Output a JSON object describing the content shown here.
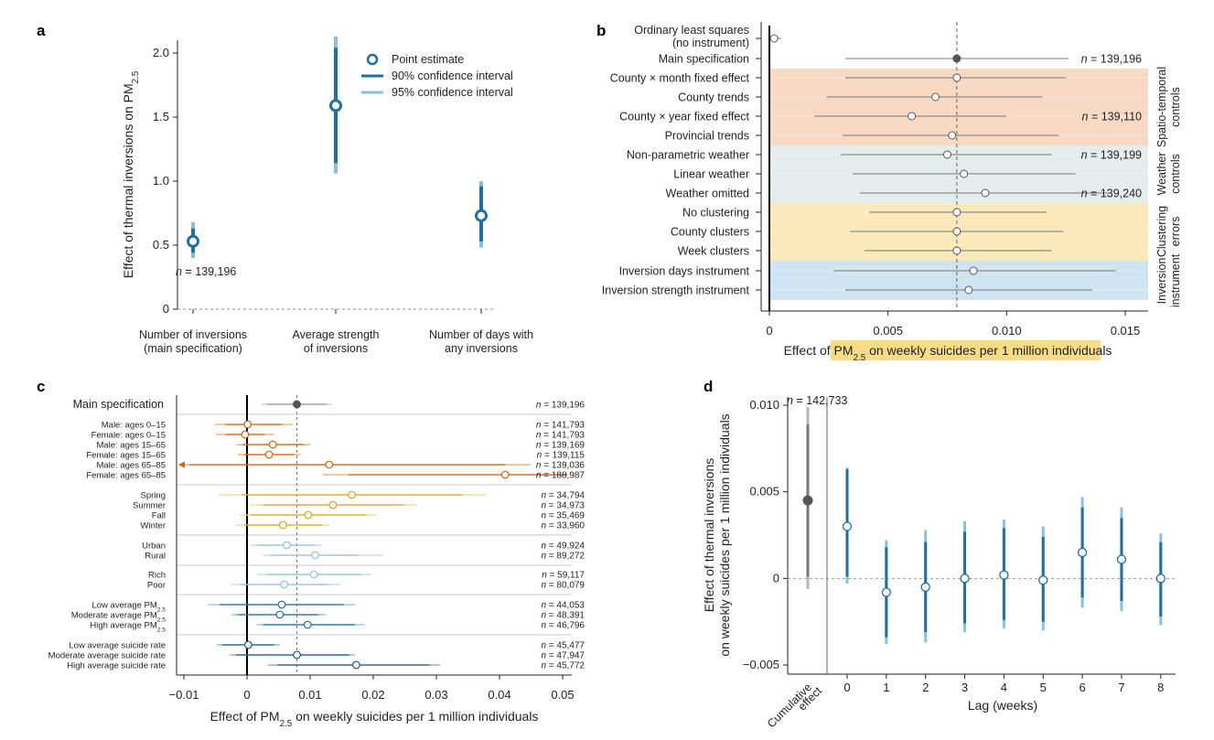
{
  "panel_labels": {
    "a": "a",
    "b": "b",
    "c": "c",
    "d": "d"
  },
  "colors": {
    "blue_dark": "#1d6fa8",
    "blue_light": "#8dbfdd",
    "gray_point": "#555555",
    "orange_dark": "#d95f0e",
    "orange_light": "#f2a65a",
    "yellow_dark": "#e3a21a",
    "yellow_light": "#f5d58a",
    "lightblue_point": "#8ec1dc",
    "navy": "#1d5a80",
    "band_spatio": "#f8d9c3",
    "band_weather": "#e4ecec",
    "band_cluster": "#fbe8bb",
    "band_instrument": "#cfe3f1",
    "xlabel_highlight": "#f6dc86"
  },
  "chart_data": [
    {
      "id": "a",
      "type": "scatter",
      "ylabel_prefix": "Effect of thermal inversions on PM",
      "ylabel_sub": "2.5",
      "yticks": [
        "0",
        "0.5",
        "1.0",
        "1.5",
        "2.0"
      ],
      "ytick_values": [
        0,
        0.5,
        1.0,
        1.5,
        2.0
      ],
      "ylim": [
        0,
        2.1
      ],
      "categories": [
        {
          "line1": "Number of inversions",
          "line2": "(main specification)"
        },
        {
          "line1": "Average strength",
          "line2": "of inversions"
        },
        {
          "line1": "Number of days with",
          "line2": "any inversions"
        }
      ],
      "points": [
        {
          "est": 0.53,
          "ci90": [
            0.44,
            0.63
          ],
          "ci95": [
            0.4,
            0.68
          ]
        },
        {
          "est": 1.59,
          "ci90": [
            1.14,
            2.04
          ],
          "ci95": [
            1.06,
            2.13
          ]
        },
        {
          "est": 0.73,
          "ci90": [
            0.53,
            0.96
          ],
          "ci95": [
            0.48,
            1.0
          ]
        }
      ],
      "legend": [
        "Point estimate",
        "90% confidence interval",
        "95% confidence interval"
      ],
      "annotation": {
        "n_prefix": "n",
        "n_text": " = 139,196"
      }
    },
    {
      "id": "b",
      "type": "scatter",
      "xlabel_prefix": "Effect of PM",
      "xlabel_sub": "2.5",
      "xlabel_suffix": " on weekly suicides per 1 million individuals",
      "xticks": [
        "0",
        "0.005",
        "0.010",
        "0.015"
      ],
      "xtick_values": [
        0,
        0.005,
        0.01,
        0.015
      ],
      "xlim": [
        0,
        0.0162
      ],
      "reference_value": 0.0079,
      "rows": [
        {
          "line1": "Ordinary least squares",
          "line2": "(no instrument)",
          "est": 0.0002,
          "lo": 0.0,
          "hi": 0.0005,
          "filled": false,
          "n": ""
        },
        {
          "label": "Main specification",
          "est": 0.0079,
          "lo": 0.0032,
          "hi": 0.0126,
          "filled": true,
          "n": "139,196"
        },
        {
          "label": "County × month fixed effect",
          "est": 0.0079,
          "lo": 0.0032,
          "hi": 0.0125,
          "filled": false,
          "n": ""
        },
        {
          "label": "County trends",
          "est": 0.007,
          "lo": 0.0024,
          "hi": 0.0115,
          "filled": false,
          "n": ""
        },
        {
          "label": "County × year fixed effect",
          "est": 0.006,
          "lo": 0.0019,
          "hi": 0.01,
          "filled": false,
          "n": "139,110"
        },
        {
          "label": "Provincial trends",
          "est": 0.0077,
          "lo": 0.0031,
          "hi": 0.0122,
          "filled": false,
          "n": ""
        },
        {
          "label": "Non-parametric weather",
          "est": 0.0075,
          "lo": 0.003,
          "hi": 0.0119,
          "filled": false,
          "n": "139,199"
        },
        {
          "label": "Linear weather",
          "est": 0.0082,
          "lo": 0.0035,
          "hi": 0.0129,
          "filled": false,
          "n": ""
        },
        {
          "label": "Weather omitted",
          "est": 0.0091,
          "lo": 0.0038,
          "hi": 0.0144,
          "filled": false,
          "n": "139,240"
        },
        {
          "label": "No clustering",
          "est": 0.0079,
          "lo": 0.0042,
          "hi": 0.0117,
          "filled": false,
          "n": ""
        },
        {
          "label": "County clusters",
          "est": 0.0079,
          "lo": 0.0034,
          "hi": 0.0124,
          "filled": false,
          "n": ""
        },
        {
          "label": "Week clusters",
          "est": 0.0079,
          "lo": 0.004,
          "hi": 0.0119,
          "filled": false,
          "n": ""
        },
        {
          "label": "Inversion days instrument",
          "est": 0.0086,
          "lo": 0.0027,
          "hi": 0.0146,
          "filled": false,
          "n": ""
        },
        {
          "label": "Inversion strength instrument",
          "est": 0.0084,
          "lo": 0.0032,
          "hi": 0.0136,
          "filled": false,
          "n": ""
        }
      ],
      "groups": [
        {
          "line1": "Spatio-temporal",
          "line2": "controls"
        },
        {
          "line1": "Weather",
          "line2": "controls"
        },
        {
          "line1": "Clustering",
          "line2": "errors"
        },
        {
          "line1": "Inversion",
          "line2": "instrument"
        }
      ],
      "n_prefix": "n"
    },
    {
      "id": "c",
      "type": "scatter",
      "xlabel_prefix": "Effect of PM",
      "xlabel_sub": "2.5",
      "xlabel_suffix": " on weekly suicides per 1 million individuals",
      "xticks": [
        "−0.01",
        "0",
        "0.01",
        "0.02",
        "0.03",
        "0.04",
        "0.05"
      ],
      "xtick_values": [
        -0.01,
        0,
        0.01,
        0.02,
        0.03,
        0.04,
        0.05
      ],
      "xlim": [
        -0.0103,
        0.0508
      ],
      "reference_value": 0.0079,
      "main": {
        "label": "Main specification",
        "est": 0.0079,
        "lo90": 0.0032,
        "hi90": 0.0126,
        "lo95": 0.0023,
        "hi95": 0.0135,
        "n": "139,196"
      },
      "subgroups": [
        {
          "label": "Male: ages 0–15",
          "est": 0.0001,
          "lo90": -0.0034,
          "hi90": 0.0055,
          "lo95": -0.0051,
          "hi95": 0.0072,
          "n": "141,793",
          "color": "orange"
        },
        {
          "label": "Female: ages 0–15",
          "est": -0.0003,
          "lo90": -0.0034,
          "hi90": 0.0028,
          "lo95": -0.0049,
          "hi95": 0.0043,
          "n": "141,793",
          "color": "orange"
        },
        {
          "label": "Male: ages 15–65",
          "est": 0.0041,
          "lo90": -0.0007,
          "hi90": 0.009,
          "lo95": -0.0017,
          "hi95": 0.01,
          "n": "139,169",
          "color": "orange"
        },
        {
          "label": "Female: ages 15–65",
          "est": 0.0035,
          "lo90": -0.0005,
          "hi90": 0.0075,
          "lo95": -0.0015,
          "hi95": 0.0085,
          "n": "139,115",
          "color": "orange"
        },
        {
          "label": "Male: ages 65–85",
          "est": 0.013,
          "lo90": -0.0092,
          "hi90": 0.041,
          "lo95": -0.0103,
          "hi95": 0.045,
          "n": "139,036",
          "color": "orange",
          "arrow": true
        },
        {
          "label": "Female: ages 65–85",
          "est": 0.0409,
          "lo90": 0.016,
          "hi90": 0.0508,
          "lo95": 0.012,
          "hi95": 0.0508,
          "n": "188,987",
          "color": "orange"
        },
        {
          "label": "Spring",
          "est": 0.0166,
          "lo90": -0.0008,
          "hi90": 0.0342,
          "lo95": -0.0045,
          "hi95": 0.0379,
          "n": "34,794",
          "color": "yellow"
        },
        {
          "label": "Summer",
          "est": 0.0136,
          "lo90": 0.0025,
          "hi90": 0.0248,
          "lo95": 0.0005,
          "hi95": 0.0268,
          "n": "34,973",
          "color": "yellow"
        },
        {
          "label": "Fall",
          "est": 0.0097,
          "lo90": 0.0006,
          "hi90": 0.0189,
          "lo95": -0.0011,
          "hi95": 0.0206,
          "n": "35,469",
          "color": "yellow"
        },
        {
          "label": "Winter",
          "est": 0.0057,
          "lo90": -0.0005,
          "hi90": 0.0119,
          "lo95": -0.0017,
          "hi95": 0.0131,
          "n": "33,960",
          "color": "yellow"
        },
        {
          "label": "Urban",
          "est": 0.0063,
          "lo90": 0.0016,
          "hi90": 0.0109,
          "lo95": 0.0007,
          "hi95": 0.0118,
          "n": "49,924",
          "color": "lightblue"
        },
        {
          "label": "Rural",
          "est": 0.0108,
          "lo90": 0.0039,
          "hi90": 0.0177,
          "lo95": 0.0025,
          "hi95": 0.0215,
          "n": "89,272",
          "color": "lightblue"
        },
        {
          "label": "Rich",
          "est": 0.0106,
          "lo90": 0.0031,
          "hi90": 0.0181,
          "lo95": 0.0016,
          "hi95": 0.0196,
          "n": "59,117",
          "color": "lightblue"
        },
        {
          "label": "Poor",
          "est": 0.0059,
          "lo90": -0.0011,
          "hi90": 0.0129,
          "lo95": -0.0025,
          "hi95": 0.0148,
          "n": "80,079",
          "color": "lightblue"
        },
        {
          "label_prefix": "Low average PM",
          "sub": "2.5",
          "est": 0.0055,
          "lo90": -0.0043,
          "hi90": 0.0153,
          "lo95": -0.0062,
          "hi95": 0.0172,
          "n": "44,053",
          "color": "blue"
        },
        {
          "label_prefix": "Moderate average PM",
          "sub": "2.5",
          "est": 0.0052,
          "lo90": -0.0015,
          "hi90": 0.0113,
          "lo95": -0.0025,
          "hi95": 0.0125,
          "n": "48,391",
          "color": "blue"
        },
        {
          "label_prefix": "High average PM",
          "sub": "2.5",
          "est": 0.0096,
          "lo90": 0.0025,
          "hi90": 0.0171,
          "lo95": 0.0015,
          "hi95": 0.0186,
          "n": "46,796",
          "color": "blue"
        },
        {
          "label": "Low average suicide rate",
          "est": 0.0002,
          "lo90": -0.0039,
          "hi90": 0.0043,
          "lo95": -0.0048,
          "hi95": 0.0052,
          "n": "45,477",
          "color": "navy"
        },
        {
          "label": "Moderate average suicide rate",
          "est": 0.0079,
          "lo90": -0.0018,
          "hi90": 0.0162,
          "lo95": -0.0027,
          "hi95": 0.0171,
          "n": "47,947",
          "color": "navy"
        },
        {
          "label": "High average suicide rate",
          "est": 0.0173,
          "lo90": 0.0048,
          "hi90": 0.0289,
          "lo95": 0.0033,
          "hi95": 0.0306,
          "n": "45,772",
          "color": "navy"
        }
      ],
      "n_prefix": "n"
    },
    {
      "id": "d",
      "type": "scatter",
      "ylabel_line1": "Effect of thermal inversions",
      "ylabel_line2": "on weekly suicides per 1 million individuals",
      "xlabel": "Lag (weeks)",
      "yticks": [
        "−0.005",
        "0",
        "0.005",
        "0.010"
      ],
      "ytick_values": [
        -0.005,
        0,
        0.005,
        0.01
      ],
      "ylim": [
        -0.0052,
        0.0103
      ],
      "cumulative": {
        "label_line1": "Cumulative",
        "label_line2": "effect",
        "est": 0.0045,
        "lo90": 0.0001,
        "hi90": 0.0089,
        "lo95": -0.0006,
        "hi95": 0.0099
      },
      "annotation": {
        "n_prefix": "n",
        "n_text": " = 142,733"
      },
      "lags": [
        {
          "x": "0",
          "est": 0.003,
          "lo90": 0.0001,
          "hi90": 0.0063,
          "lo95": -0.0003,
          "hi95": 0.0064
        },
        {
          "x": "1",
          "est": -0.0008,
          "lo90": -0.0034,
          "hi90": 0.0018,
          "lo95": -0.0038,
          "hi95": 0.0022
        },
        {
          "x": "2",
          "est": -0.0005,
          "lo90": -0.0031,
          "hi90": 0.0021,
          "lo95": -0.0037,
          "hi95": 0.0028
        },
        {
          "x": "3",
          "est": 0.0,
          "lo90": -0.0026,
          "hi90": 0.0027,
          "lo95": -0.0031,
          "hi95": 0.0033
        },
        {
          "x": "4",
          "est": 0.0002,
          "lo90": -0.0024,
          "hi90": 0.0029,
          "lo95": -0.0029,
          "hi95": 0.0034
        },
        {
          "x": "5",
          "est": -0.0001,
          "lo90": -0.0025,
          "hi90": 0.0024,
          "lo95": -0.003,
          "hi95": 0.003
        },
        {
          "x": "6",
          "est": 0.0015,
          "lo90": -0.0011,
          "hi90": 0.0041,
          "lo95": -0.0017,
          "hi95": 0.0047
        },
        {
          "x": "7",
          "est": 0.0011,
          "lo90": -0.0013,
          "hi90": 0.0035,
          "lo95": -0.0019,
          "hi95": 0.0041
        },
        {
          "x": "8",
          "est": 0.0,
          "lo90": -0.0022,
          "hi90": 0.0021,
          "lo95": -0.0027,
          "hi95": 0.0026
        }
      ]
    }
  ]
}
